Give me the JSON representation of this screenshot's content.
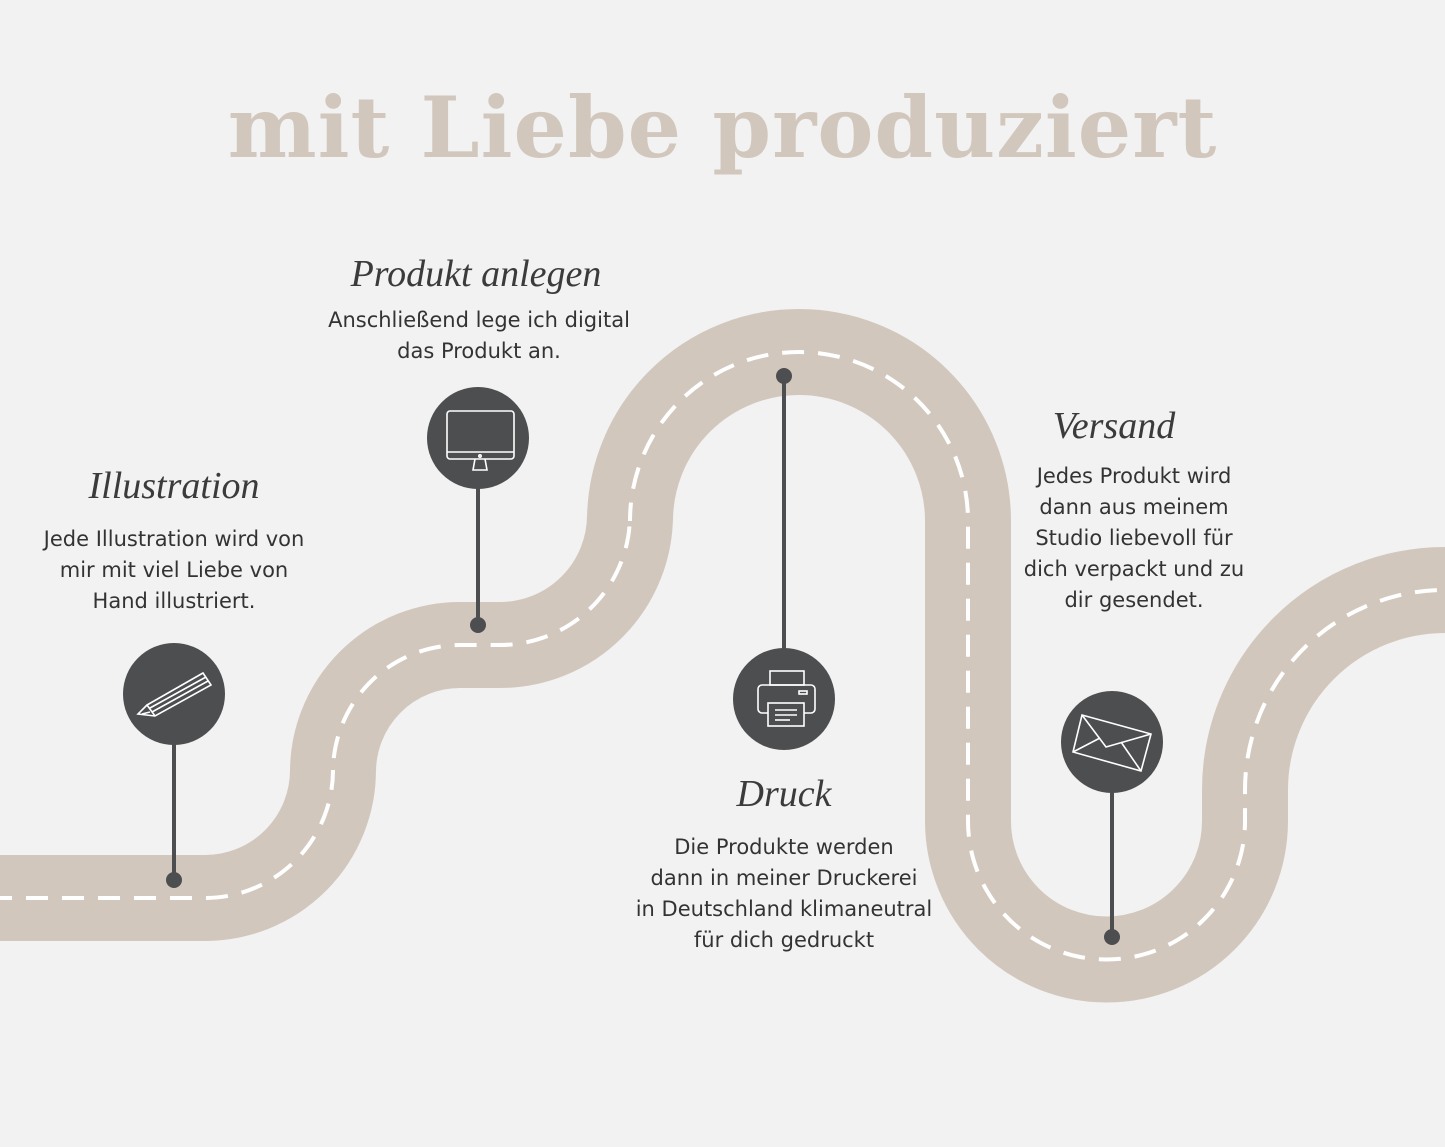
{
  "title": "mit Liebe produziert",
  "colors": {
    "road": "#d2c7bd",
    "dash": "#ffffff",
    "pin": "#4d4e50",
    "background": "#f2f2f2"
  },
  "steps": [
    {
      "heading": "Illustration",
      "text": "Jede Illustration wird von\nmir mit viel Liebe von\nHand illustriert.",
      "icon": "pencil-icon"
    },
    {
      "heading": "Produkt anlegen",
      "text": "Anschließend lege ich digital\ndas Produkt an.",
      "icon": "monitor-icon"
    },
    {
      "heading": "Druck",
      "text": "Die Produkte werden\ndann in meiner Druckerei\nin Deutschland klimaneutral\nfür dich gedruckt",
      "icon": "printer-icon"
    },
    {
      "heading": "Versand",
      "text": "Jedes Produkt wird\ndann aus meinem\nStudio liebevoll für\ndich verpackt und zu\ndir gesendet.",
      "icon": "envelope-icon"
    }
  ]
}
